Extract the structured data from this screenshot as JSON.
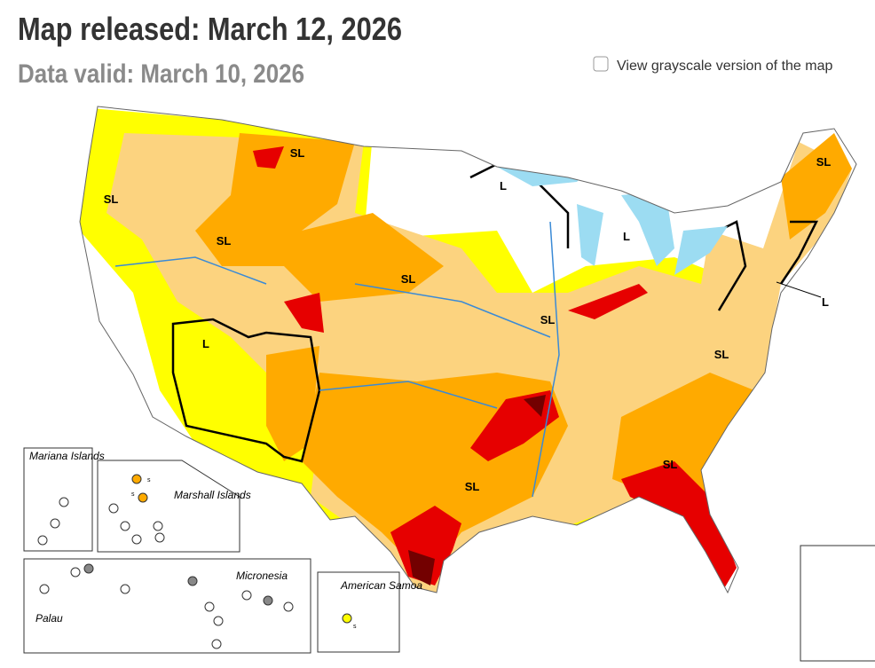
{
  "header": {
    "title": "Map released: March 12, 2026",
    "subtitle": "Data valid: March 10, 2026"
  },
  "grayscale_toggle": {
    "label": "View grayscale version of the map",
    "checked": false
  },
  "map": {
    "impact_labels": [
      "SL",
      "SL",
      "SL",
      "SL",
      "SL",
      "SL",
      "SL",
      "SL",
      "SL",
      "L",
      "L",
      "L",
      "L"
    ]
  },
  "insets": {
    "mariana": "Mariana Islands",
    "marshall": "Marshall Islands",
    "micronesia": "Micronesia",
    "palau": "Palau",
    "samoa": "American Samoa",
    "marshall_marks": [
      "s",
      "s"
    ],
    "samoa_mark": "s"
  }
}
